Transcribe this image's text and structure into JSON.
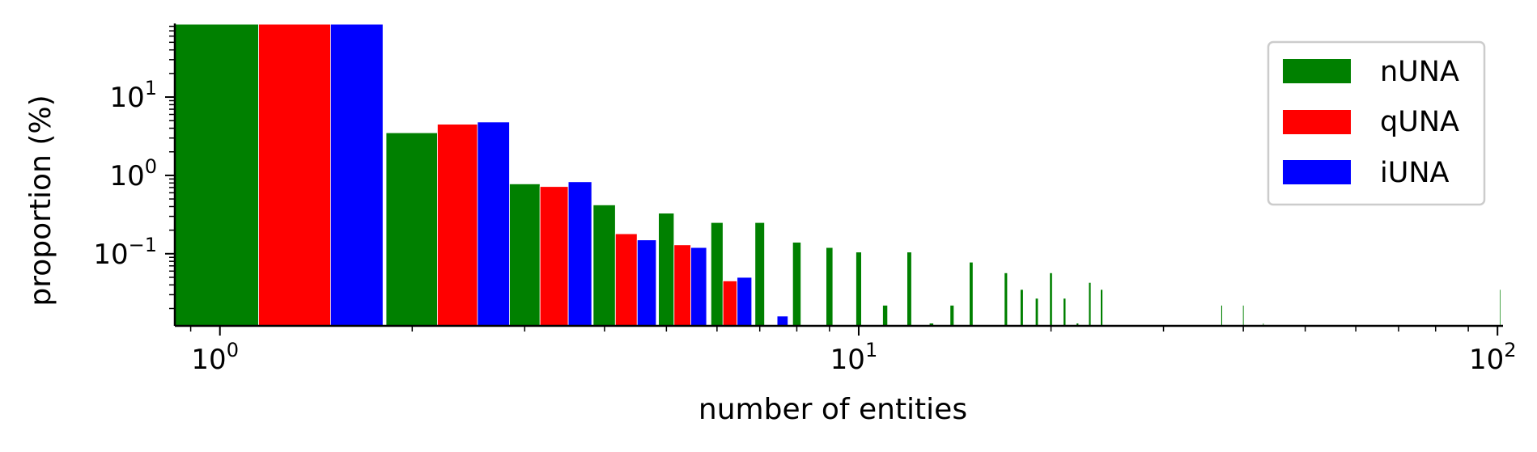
{
  "chart_data": {
    "type": "bar",
    "title": "",
    "xlabel": "number of entities",
    "ylabel": "proportion (%)",
    "x_scale": "log",
    "y_scale": "log",
    "xlim": [
      0.85,
      102
    ],
    "ylim": [
      0.012,
      85
    ],
    "grid": false,
    "legend_position": "top-right",
    "x_ticks": [
      {
        "value": 1,
        "base": "10",
        "exp": "0"
      },
      {
        "value": 10,
        "base": "10",
        "exp": "1"
      },
      {
        "value": 100,
        "base": "10",
        "exp": "2"
      }
    ],
    "y_ticks": [
      {
        "value": 10,
        "base": "10",
        "exp": "1"
      },
      {
        "value": 1,
        "base": "10",
        "exp": "0"
      },
      {
        "value": 0.1,
        "base": "10",
        "exp": "−1"
      }
    ],
    "series": [
      {
        "name": "nUNA",
        "color": "#008000",
        "bars": [
          {
            "x0": 0.85,
            "x1": 1.15,
            "y": 85
          },
          {
            "x0": 1.82,
            "x1": 2.19,
            "y": 3.5
          },
          {
            "x0": 2.83,
            "x1": 3.17,
            "y": 0.78
          },
          {
            "x0": 3.84,
            "x1": 4.16,
            "y": 0.42
          },
          {
            "x0": 4.86,
            "x1": 5.14,
            "y": 0.33
          },
          {
            "x0": 5.87,
            "x1": 6.13,
            "y": 0.25
          },
          {
            "x0": 6.88,
            "x1": 7.12,
            "y": 0.25
          },
          {
            "x0": 7.88,
            "x1": 8.12,
            "y": 0.14
          },
          {
            "x0": 8.89,
            "x1": 9.11,
            "y": 0.12
          },
          {
            "x0": 9.9,
            "x1": 10.1,
            "y": 0.105
          },
          {
            "x0": 10.9,
            "x1": 11.1,
            "y": 0.022
          },
          {
            "x0": 11.9,
            "x1": 12.1,
            "y": 0.105
          },
          {
            "x0": 12.9,
            "x1": 13.1,
            "y": 0.013
          },
          {
            "x0": 13.9,
            "x1": 14.1,
            "y": 0.022
          },
          {
            "x0": 14.9,
            "x1": 15.1,
            "y": 0.078
          },
          {
            "x0": 16.9,
            "x1": 17.1,
            "y": 0.057
          },
          {
            "x0": 17.9,
            "x1": 18.1,
            "y": 0.035
          },
          {
            "x0": 18.9,
            "x1": 19.1,
            "y": 0.027
          },
          {
            "x0": 19.9,
            "x1": 20.1,
            "y": 0.057
          },
          {
            "x0": 20.9,
            "x1": 21.1,
            "y": 0.027
          },
          {
            "x0": 21.9,
            "x1": 22.1,
            "y": 0.013
          },
          {
            "x0": 22.9,
            "x1": 23.1,
            "y": 0.043
          },
          {
            "x0": 23.9,
            "x1": 24.1,
            "y": 0.035
          },
          {
            "x0": 36.9,
            "x1": 37.1,
            "y": 0.022
          },
          {
            "x0": 39.9,
            "x1": 40.1,
            "y": 0.022
          },
          {
            "x0": 42.9,
            "x1": 43.1,
            "y": 0.013
          },
          {
            "x0": 100.8,
            "x1": 101.2,
            "y": 0.035
          }
        ]
      },
      {
        "name": "qUNA",
        "color": "#ff0000",
        "bars": [
          {
            "x0": 1.15,
            "x1": 1.49,
            "y": 85
          },
          {
            "x0": 2.19,
            "x1": 2.53,
            "y": 4.5
          },
          {
            "x0": 3.17,
            "x1": 3.51,
            "y": 0.72
          },
          {
            "x0": 4.16,
            "x1": 4.5,
            "y": 0.18
          },
          {
            "x0": 5.14,
            "x1": 5.46,
            "y": 0.13
          },
          {
            "x0": 6.13,
            "x1": 6.45,
            "y": 0.045
          }
        ]
      },
      {
        "name": "iUNA",
        "color": "#0000ff",
        "bars": [
          {
            "x0": 1.49,
            "x1": 1.8,
            "y": 85
          },
          {
            "x0": 2.53,
            "x1": 2.84,
            "y": 4.8
          },
          {
            "x0": 3.51,
            "x1": 3.82,
            "y": 0.83
          },
          {
            "x0": 4.5,
            "x1": 4.82,
            "y": 0.15
          },
          {
            "x0": 5.46,
            "x1": 5.78,
            "y": 0.12
          },
          {
            "x0": 6.45,
            "x1": 6.8,
            "y": 0.05
          },
          {
            "x0": 7.45,
            "x1": 7.75,
            "y": 0.016
          }
        ]
      }
    ]
  }
}
